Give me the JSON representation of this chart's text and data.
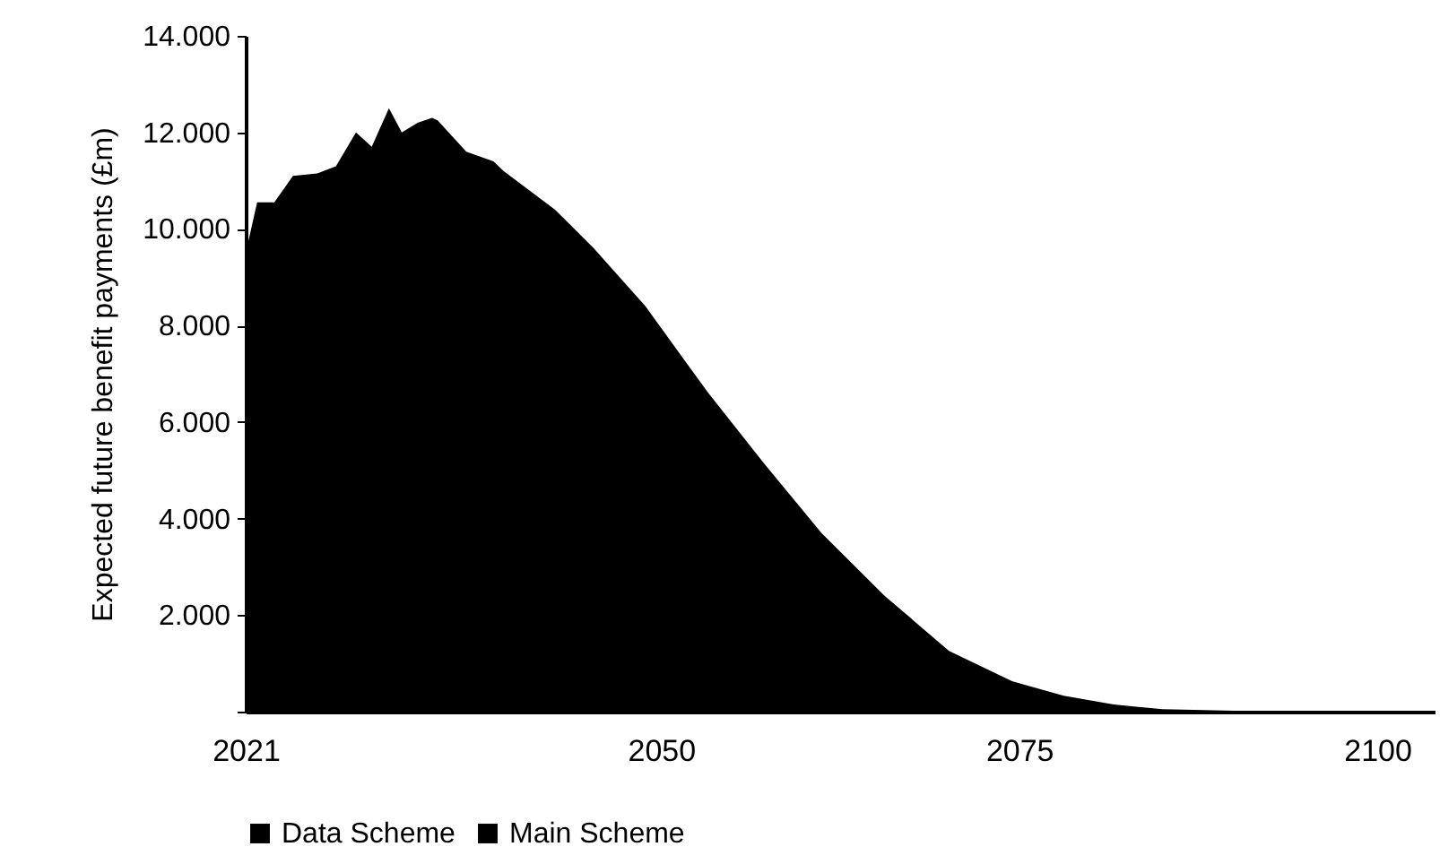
{
  "chart_data": {
    "type": "area",
    "ylabel": "Expected future benefit payments (£m)",
    "x": [
      2021,
      2021.8,
      2023,
      2024.3,
      2026,
      2027.3,
      2028.7,
      2029.8,
      2031,
      2031.9,
      2033,
      2034,
      2034.4,
      2036.4,
      2038.3,
      2039,
      2042.6,
      2045.3,
      2048.9,
      2053.3,
      2057.3,
      2061.2,
      2065.6,
      2070.1,
      2074.5,
      2078.1,
      2081.6,
      2085,
      2090,
      2095,
      2100,
      2104
    ],
    "series": [
      {
        "name": "Data Scheme",
        "color": "#000000",
        "values": [
          null,
          null,
          null,
          null,
          null,
          null,
          null,
          null,
          null,
          null,
          null,
          null,
          null,
          null,
          null,
          null,
          null,
          null,
          null,
          null,
          null,
          null,
          null,
          null,
          null,
          null,
          null,
          null,
          null,
          null,
          null,
          null
        ]
      },
      {
        "name": "Main Scheme",
        "color": "#000000",
        "values": [
          9.5,
          10.55,
          10.55,
          11.1,
          11.15,
          11.3,
          12.0,
          11.7,
          12.5,
          12.0,
          12.2,
          12.3,
          12.25,
          11.6,
          11.4,
          11.2,
          10.4,
          9.6,
          8.4,
          6.6,
          5.1,
          3.7,
          2.4,
          1.26,
          0.63,
          0.33,
          0.15,
          0.05,
          0.02,
          0.01,
          0,
          0
        ]
      }
    ],
    "xlim": [
      2021,
      2104
    ],
    "xticks": [
      2021,
      2050,
      2075,
      2100
    ],
    "ylim": [
      0,
      14
    ],
    "yticks": [
      {
        "value": 0,
        "label": null
      },
      {
        "value": 2,
        "label": "2.000"
      },
      {
        "value": 4,
        "label": "4.000"
      },
      {
        "value": 6,
        "label": "6.000"
      },
      {
        "value": 8,
        "label": "8.000"
      },
      {
        "value": 10,
        "label": "10.000"
      },
      {
        "value": 12,
        "label": "12.000"
      },
      {
        "value": 14,
        "label": "14.000"
      }
    ],
    "grid": false,
    "legend": "bottom"
  }
}
